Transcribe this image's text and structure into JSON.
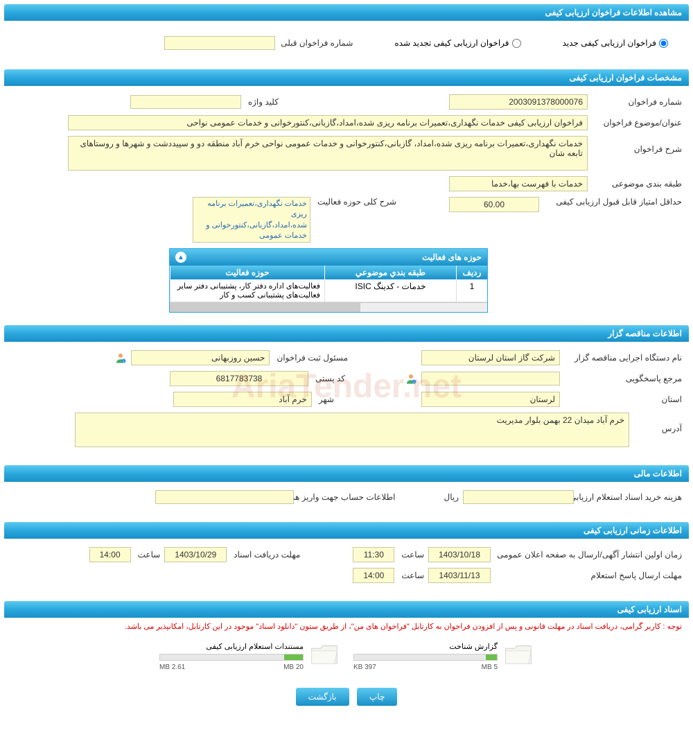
{
  "colors": {
    "header_gradient_top": "#5bc9f0",
    "header_gradient_bottom": "#1a90c8",
    "field_bg": "#fdfccf",
    "field_border": "#c8c8a0",
    "warn": "#d00",
    "progress": "#6cc04a"
  },
  "sections": {
    "s1": "مشاهده اطلاعات فراخوان ارزیابی کیفی",
    "s2": "مشخصات فراخوان ارزیابی کیفی",
    "s3": "اطلاعات مناقصه گزار",
    "s4": "اطلاعات مالی",
    "s5": "اطلاعات زمانی ارزیابی کیفی",
    "s6": "اسناد ارزیابی کیفی"
  },
  "radio": {
    "new": "فراخوان ارزیابی کیفی جدید",
    "renew": "فراخوان ارزیابی کیفی تجدید شده",
    "prev_label": "شماره فراخوان قبلی",
    "prev_value": ""
  },
  "spec": {
    "num_label": "شماره فراخوان",
    "num_value": "2003091378000076",
    "keyword_label": "کلید واژه",
    "keyword_value": "",
    "title_label": "عنوان/موضوع فراخوان",
    "title_value": "فراخوان ارزیابی کیفی خدمات نگهداری،تعمیرات برنامه ریزی شده،امداد،گازبانی،کنتورخوانی و خدمات عمومی نواحی",
    "desc_label": "شرح فراخوان",
    "desc_value": "خدمات نگهداری،تعمیرات برنامه ریزی شده،امداد، گازبانی،کنتورخوانی و خدمات عمومی نواحی خرم آباد منطقه دو و سپیددشت و شهرها و روستاهای تابعه شان",
    "cat_label": "طبقه بندی موضوعی",
    "cat_value": "خدمات با فهرست بها،خدما",
    "minscore_label": "حداقل امتیاز قابل قبول ارزیابی کیفی",
    "minscore_value": "60.00",
    "scope_label": "شرح کلی حوزه فعالیت",
    "scope_items": "خدمات نگهداری،تعمیرات برنامه ریزی شده،امداد،گازبانی،کنتورخوانی و خدمات عمومی"
  },
  "grid": {
    "title": "حوزه های فعالیت",
    "col_idx": "ردیف",
    "col_cat": "طبقه بندي موضوعي",
    "col_act": "حوزه فعاليت",
    "row1_idx": "1",
    "row1_cat": "خدمات - کدینگ ISIC",
    "row1_act": "فعالیت‌های اداره دفتر کار، پشتیبانی دفتر سایر فعالیت‌های پشتیبانی کسب و کار"
  },
  "org": {
    "name_label": "نام دستگاه اجرایی مناقصه گزار",
    "name_value": "شرکت گاز استان لرستان",
    "reg_label": "مسئول ثبت فراخوان",
    "reg_value": "حسین روزبهانی",
    "resp_label": "مرجع پاسخگویی",
    "resp_value": "",
    "postal_label": "کد پستی",
    "postal_value": "6817783738",
    "province_label": "استان",
    "province_value": "لرستان",
    "city_label": "شهر",
    "city_value": "خرم آباد",
    "addr_label": "آدرس",
    "addr_value": "خرم آباد میدان 22 بهمن بلوار مدیریت"
  },
  "fin": {
    "cost_label": "هزینه خرید اسناد استعلام ارزیابی کیفی",
    "cost_value": "",
    "unit": "ریال",
    "acct_label": "اطلاعات حساب جهت واریز هزینه خرید اسناد",
    "acct_value": ""
  },
  "time": {
    "pub_label": "زمان اولین انتشار آگهی/ارسال به صفحه اعلان عمومی",
    "pub_date": "1403/10/18",
    "pub_time": "11:30",
    "deadline_label": "مهلت دریافت اسناد",
    "deadline_date": "1403/10/29",
    "deadline_time": "14:00",
    "resp_label": "مهلت ارسال پاسخ استعلام",
    "resp_date": "1403/11/13",
    "resp_time": "14:00",
    "hour": "ساعت"
  },
  "docs": {
    "warn": "توجه : کاربر گرامی، دریافت اسناد در مهلت قانونی و پس از افزودن فراخوان به کارتابل \"فراخوان های من\"، از طریق ستون \"دانلود اسناد\" موجود در این کارتابل، امکانپذیر می باشد.",
    "f1_name": "گزارش شناخت",
    "f1_size": "397 KB",
    "f1_max": "5 MB",
    "f1_pct": 8,
    "f2_name": "مستندات استعلام ارزیابی کیفی",
    "f2_size": "2.61 MB",
    "f2_max": "20 MB",
    "f2_pct": 13
  },
  "buttons": {
    "print": "چاپ",
    "back": "بازگشت"
  },
  "watermark": "AriaTender.net"
}
